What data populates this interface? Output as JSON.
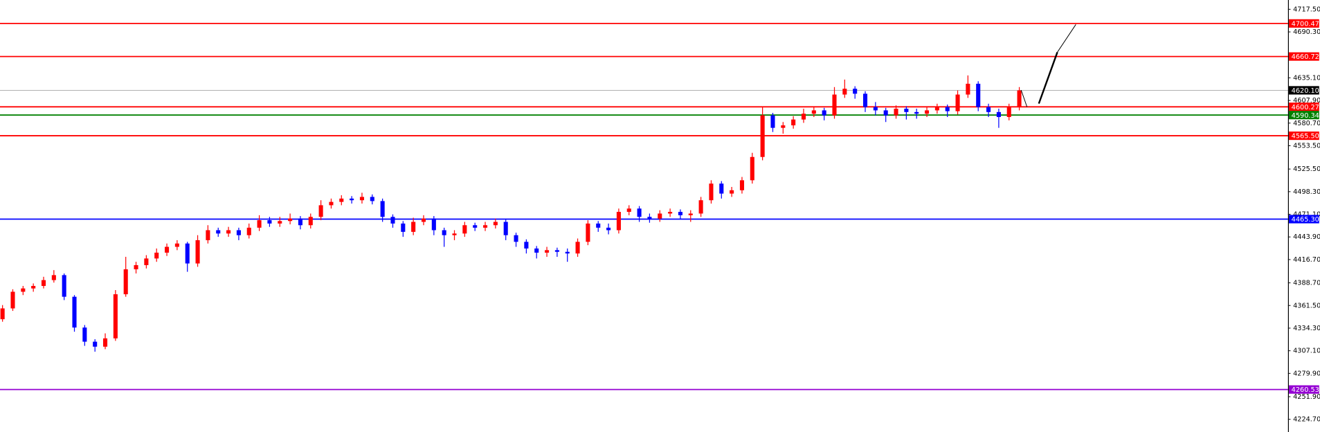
{
  "chart_data": {
    "type": "candlestick",
    "ylim": [
      4209.5,
      4728.6
    ],
    "yticks": [
      {
        "value": 4717.5,
        "label": "4717.50"
      },
      {
        "value": 4690.3,
        "label": "4690.30"
      },
      {
        "value": 4635.1,
        "label": "4635.10"
      },
      {
        "value": 4607.9,
        "label": "4607.90"
      },
      {
        "value": 4580.7,
        "label": "4580.70"
      },
      {
        "value": 4553.5,
        "label": "4553.50"
      },
      {
        "value": 4525.5,
        "label": "4525.50"
      },
      {
        "value": 4498.3,
        "label": "4498.30"
      },
      {
        "value": 4471.1,
        "label": "4471.10"
      },
      {
        "value": 4443.9,
        "label": "4443.90"
      },
      {
        "value": 4416.7,
        "label": "4416.70"
      },
      {
        "value": 4388.7,
        "label": "4388.70"
      },
      {
        "value": 4361.5,
        "label": "4361.50"
      },
      {
        "value": 4334.3,
        "label": "4334.30"
      },
      {
        "value": 4307.1,
        "label": "4307.10"
      },
      {
        "value": 4279.9,
        "label": "4279.90"
      },
      {
        "value": 4251.9,
        "label": "4251.90"
      },
      {
        "value": 4224.7,
        "label": "4224.70"
      }
    ],
    "up_color": "#ff0000",
    "down_color": "#0000ff",
    "levels": [
      {
        "value": 4700.47,
        "label": "4700.47",
        "color": "#ff0000"
      },
      {
        "value": 4660.72,
        "label": "4660.72",
        "color": "#ff0000"
      },
      {
        "value": 4620.1,
        "label": "4620.10",
        "color": "#000000"
      },
      {
        "value": 4600.27,
        "label": "4600.27",
        "color": "#ff0000"
      },
      {
        "value": 4590.34,
        "label": "4590.34",
        "color": "#008000"
      },
      {
        "value": 4565.5,
        "label": "4565.50",
        "color": "#ff0000"
      },
      {
        "value": 4465.3,
        "label": "4465.30",
        "color": "#0000ff"
      },
      {
        "value": 4260.53,
        "label": "4260.53",
        "color": "#9400d3"
      }
    ],
    "candles": [
      [
        4345,
        4362,
        4342,
        4358
      ],
      [
        4358,
        4381,
        4355,
        4378
      ],
      [
        4378,
        4385,
        4374,
        4382
      ],
      [
        4382,
        4388,
        4378,
        4385
      ],
      [
        4385,
        4396,
        4382,
        4392
      ],
      [
        4392,
        4404,
        4389,
        4398
      ],
      [
        4398,
        4400,
        4368,
        4372
      ],
      [
        4372,
        4374,
        4330,
        4335
      ],
      [
        4335,
        4338,
        4313,
        4318
      ],
      [
        4318,
        4321,
        4306,
        4312
      ],
      [
        4312,
        4328,
        4309,
        4322
      ],
      [
        4322,
        4380,
        4319,
        4375
      ],
      [
        4375,
        4420,
        4372,
        4405
      ],
      [
        4405,
        4414,
        4400,
        4410
      ],
      [
        4410,
        4422,
        4406,
        4418
      ],
      [
        4418,
        4430,
        4414,
        4425
      ],
      [
        4425,
        4436,
        4421,
        4432
      ],
      [
        4432,
        4440,
        4428,
        4436
      ],
      [
        4436,
        4438,
        4402,
        4412
      ],
      [
        4412,
        4446,
        4408,
        4440
      ],
      [
        4440,
        4458,
        4436,
        4452
      ],
      [
        4452,
        4455,
        4444,
        4448
      ],
      [
        4448,
        4456,
        4444,
        4452
      ],
      [
        4452,
        4455,
        4440,
        4446
      ],
      [
        4446,
        4460,
        4442,
        4455
      ],
      [
        4455,
        4470,
        4451,
        4464
      ],
      [
        4464,
        4468,
        4456,
        4460
      ],
      [
        4460,
        4468,
        4456,
        4463
      ],
      [
        4463,
        4472,
        4459,
        4466
      ],
      [
        4466,
        4469,
        4453,
        4458
      ],
      [
        4458,
        4472,
        4454,
        4468
      ],
      [
        4468,
        4488,
        4464,
        4482
      ],
      [
        4482,
        4490,
        4478,
        4486
      ],
      [
        4486,
        4494,
        4482,
        4490
      ],
      [
        4490,
        4493,
        4484,
        4488
      ],
      [
        4488,
        4497,
        4484,
        4492
      ],
      [
        4492,
        4495,
        4483,
        4487
      ],
      [
        4487,
        4490,
        4462,
        4468
      ],
      [
        4468,
        4471,
        4455,
        4460
      ],
      [
        4460,
        4463,
        4444,
        4450
      ],
      [
        4450,
        4467,
        4446,
        4462
      ],
      [
        4462,
        4470,
        4458,
        4466
      ],
      [
        4466,
        4469,
        4446,
        4452
      ],
      [
        4452,
        4455,
        4432,
        4446
      ],
      [
        4446,
        4452,
        4440,
        4448
      ],
      [
        4448,
        4462,
        4444,
        4458
      ],
      [
        4458,
        4461,
        4451,
        4455
      ],
      [
        4455,
        4462,
        4451,
        4458
      ],
      [
        4458,
        4466,
        4454,
        4462
      ],
      [
        4462,
        4465,
        4440,
        4446
      ],
      [
        4446,
        4449,
        4432,
        4438
      ],
      [
        4438,
        4441,
        4424,
        4430
      ],
      [
        4430,
        4433,
        4418,
        4425
      ],
      [
        4425,
        4432,
        4420,
        4428
      ],
      [
        4428,
        4431,
        4420,
        4426
      ],
      [
        4426,
        4430,
        4414,
        4424
      ],
      [
        4424,
        4442,
        4420,
        4438
      ],
      [
        4438,
        4464,
        4434,
        4460
      ],
      [
        4460,
        4463,
        4450,
        4455
      ],
      [
        4455,
        4460,
        4447,
        4452
      ],
      [
        4452,
        4478,
        4448,
        4474
      ],
      [
        4474,
        4482,
        4470,
        4478
      ],
      [
        4478,
        4481,
        4462,
        4468
      ],
      [
        4468,
        4472,
        4461,
        4466
      ],
      [
        4466,
        4476,
        4462,
        4472
      ],
      [
        4472,
        4478,
        4468,
        4474
      ],
      [
        4474,
        4477,
        4465,
        4470
      ],
      [
        4470,
        4476,
        4462,
        4472
      ],
      [
        4472,
        4492,
        4468,
        4488
      ],
      [
        4488,
        4512,
        4484,
        4508
      ],
      [
        4508,
        4511,
        4490,
        4496
      ],
      [
        4496,
        4504,
        4492,
        4500
      ],
      [
        4500,
        4516,
        4496,
        4512
      ],
      [
        4512,
        4545,
        4508,
        4540
      ],
      [
        4540,
        4600,
        4536,
        4590
      ],
      [
        4590,
        4593,
        4570,
        4575
      ],
      [
        4575,
        4582,
        4568,
        4578
      ],
      [
        4578,
        4589,
        4574,
        4585
      ],
      [
        4585,
        4598,
        4581,
        4592
      ],
      [
        4592,
        4600,
        4588,
        4596
      ],
      [
        4596,
        4599,
        4584,
        4590
      ],
      [
        4590,
        4624,
        4586,
        4615
      ],
      [
        4615,
        4633,
        4611,
        4622
      ],
      [
        4622,
        4625,
        4610,
        4616
      ],
      [
        4616,
        4619,
        4594,
        4600
      ],
      [
        4600,
        4606,
        4590,
        4596
      ],
      [
        4596,
        4599,
        4582,
        4590
      ],
      [
        4590,
        4602,
        4586,
        4598
      ],
      [
        4598,
        4601,
        4585,
        4594
      ],
      [
        4594,
        4598,
        4586,
        4592
      ],
      [
        4592,
        4600,
        4588,
        4596
      ],
      [
        4596,
        4604,
        4592,
        4600
      ],
      [
        4600,
        4603,
        4588,
        4595
      ],
      [
        4595,
        4620,
        4591,
        4615
      ],
      [
        4615,
        4638,
        4611,
        4628
      ],
      [
        4628,
        4631,
        4595,
        4600
      ],
      [
        4600,
        4604,
        4588,
        4594
      ],
      [
        4594,
        4598,
        4575,
        4588
      ],
      [
        4588,
        4604,
        4584,
        4600
      ],
      [
        4600,
        4624,
        4596,
        4620
      ]
    ]
  }
}
